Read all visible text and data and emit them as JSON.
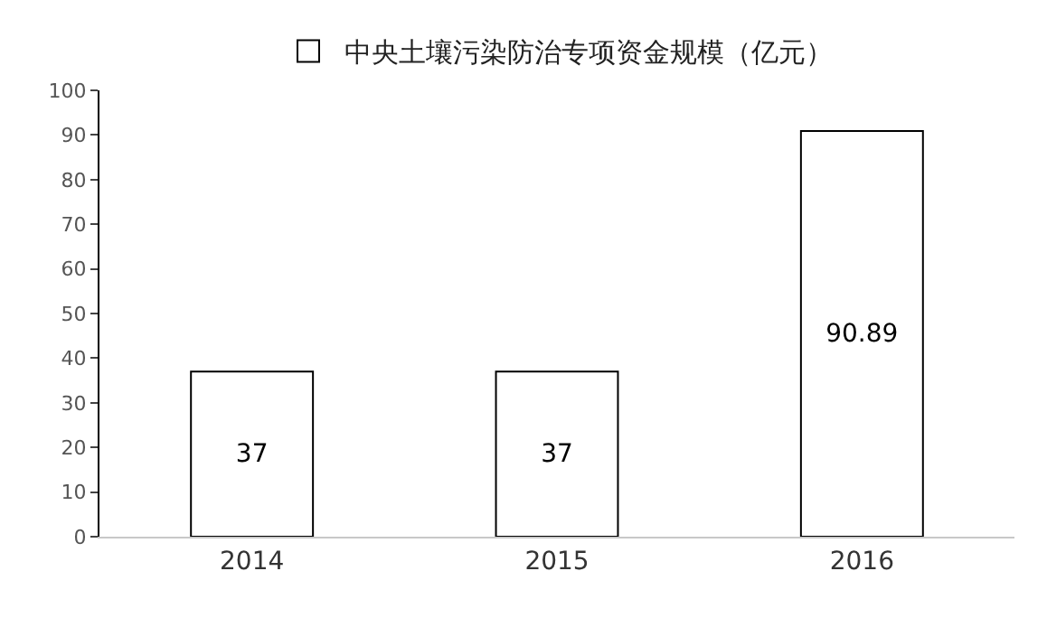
{
  "chart_data": {
    "type": "bar",
    "categories": [
      "2014",
      "2015",
      "2016"
    ],
    "series": [
      {
        "name": "中央土壤污染防治专项资金规模（亿元）",
        "color": "#ffffff",
        "values": [
          37,
          37,
          90.89
        ]
      }
    ],
    "ylim": [
      0,
      100
    ],
    "yticks": [
      0,
      10,
      20,
      30,
      40,
      50,
      60,
      70,
      80,
      90,
      100
    ],
    "data_labels": true,
    "legend": "top"
  }
}
